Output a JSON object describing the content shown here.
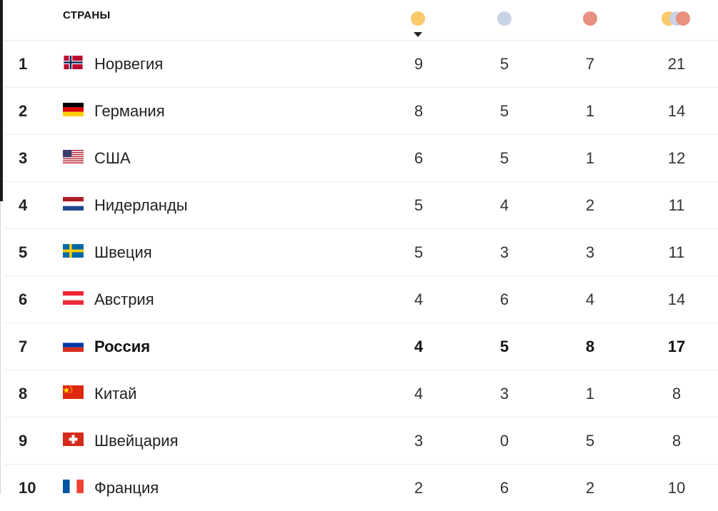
{
  "header": {
    "countries_label": "СТРАНЫ",
    "medal_colors": {
      "gold": "#f9c96a",
      "silver": "#c9d3e6",
      "bronze": "#e8917f"
    }
  },
  "rows": [
    {
      "rank": "1",
      "country": "Норвегия",
      "flag": "norway-flag-icon",
      "gold": "9",
      "silver": "5",
      "bronze": "7",
      "total": "21"
    },
    {
      "rank": "2",
      "country": "Германия",
      "flag": "germany-flag-icon",
      "gold": "8",
      "silver": "5",
      "bronze": "1",
      "total": "14"
    },
    {
      "rank": "3",
      "country": "США",
      "flag": "usa-flag-icon",
      "gold": "6",
      "silver": "5",
      "bronze": "1",
      "total": "12"
    },
    {
      "rank": "4",
      "country": "Нидерланды",
      "flag": "netherlands-flag-icon",
      "gold": "5",
      "silver": "4",
      "bronze": "2",
      "total": "11"
    },
    {
      "rank": "5",
      "country": "Швеция",
      "flag": "sweden-flag-icon",
      "gold": "5",
      "silver": "3",
      "bronze": "3",
      "total": "11"
    },
    {
      "rank": "6",
      "country": "Австрия",
      "flag": "austria-flag-icon",
      "gold": "4",
      "silver": "6",
      "bronze": "4",
      "total": "14"
    },
    {
      "rank": "7",
      "country": "Россия",
      "flag": "russia-flag-icon",
      "gold": "4",
      "silver": "5",
      "bronze": "8",
      "total": "17"
    },
    {
      "rank": "8",
      "country": "Китай",
      "flag": "china-flag-icon",
      "gold": "4",
      "silver": "3",
      "bronze": "1",
      "total": "8"
    },
    {
      "rank": "9",
      "country": "Швейцария",
      "flag": "switzerland-flag-icon",
      "gold": "3",
      "silver": "0",
      "bronze": "5",
      "total": "8"
    },
    {
      "rank": "10",
      "country": "Франция",
      "flag": "france-flag-icon",
      "gold": "2",
      "silver": "6",
      "bronze": "2",
      "total": "10"
    }
  ]
}
